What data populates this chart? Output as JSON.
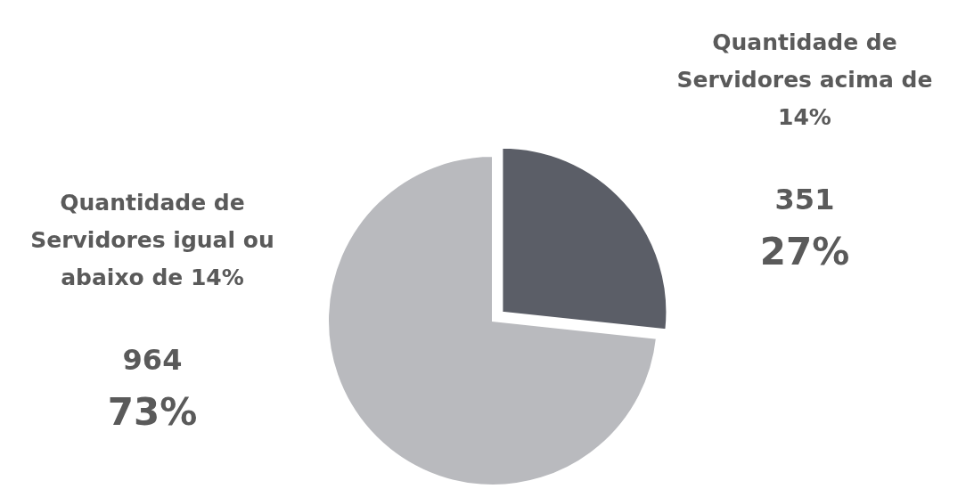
{
  "chart_data": {
    "type": "pie",
    "categories": [
      "Quantidade de Servidores acima de 14%",
      "Quantidade de Servidores igual ou abaixo de 14%"
    ],
    "values": [
      351,
      964
    ],
    "colors": [
      "#5b5e67",
      "#b9babe"
    ],
    "value_labels": [
      "351\n27%",
      "964\n73%"
    ]
  }
}
